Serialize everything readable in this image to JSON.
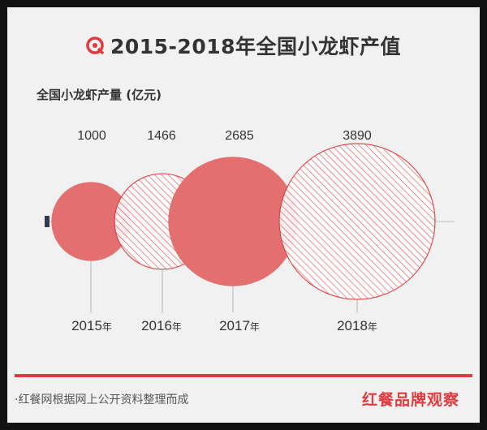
{
  "header": {
    "title": "2015-2018年全国小龙虾产值",
    "subtitle": "全国小龙虾产量 (亿元)",
    "icon": "search-q-icon"
  },
  "footer": {
    "source": "·红餐网根据网上公开资料整理而成",
    "brand": "红餐品牌观察"
  },
  "colors": {
    "solid_fill": "#e36f70",
    "hatch": "#e03a3e",
    "accent": "#e03a3e",
    "text": "#333333",
    "axis": "#bdbdbd"
  },
  "chart_data": {
    "type": "bubble",
    "title": "2015-2018年全国小龙虾产值",
    "subtitle": "全国小龙虾产量 (亿元)",
    "categories": [
      "2015年",
      "2016年",
      "2017年",
      "2018年"
    ],
    "year_labels": [
      {
        "year": "2015",
        "suffix": "年"
      },
      {
        "year": "2016",
        "suffix": "年"
      },
      {
        "year": "2017",
        "suffix": "年"
      },
      {
        "year": "2018",
        "suffix": "年"
      }
    ],
    "values": [
      1000,
      1466,
      2685,
      3890
    ],
    "styles": [
      "solid",
      "hatched",
      "solid",
      "hatched"
    ],
    "grid": false,
    "legend": "none"
  }
}
